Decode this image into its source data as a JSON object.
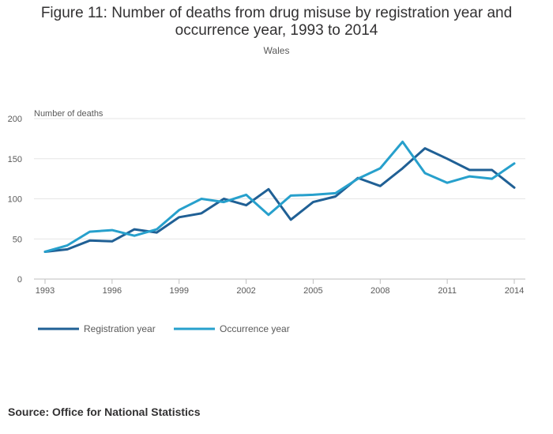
{
  "header": {
    "title": "Figure 11: Number of deaths from drug misuse by registration year and occurrence year, 1993 to 2014",
    "subtitle": "Wales"
  },
  "footer": {
    "source": "Source: Office for National Statistics"
  },
  "chart_data": {
    "type": "line",
    "title": "Figure 11: Number of deaths from drug misuse by registration year and occurrence year, 1993 to 2014",
    "subtitle": "Wales",
    "xlabel": "",
    "ylabel": "Number of deaths",
    "x": [
      1993,
      1994,
      1995,
      1996,
      1997,
      1998,
      1999,
      2000,
      2001,
      2002,
      2003,
      2004,
      2005,
      2006,
      2007,
      2008,
      2009,
      2010,
      2011,
      2012,
      2013,
      2014
    ],
    "x_ticks": [
      "1993",
      "1996",
      "1999",
      "2002",
      "2005",
      "2008",
      "2011",
      "2014"
    ],
    "y_ticks": [
      "0",
      "50",
      "100",
      "150",
      "200"
    ],
    "ylim": [
      0,
      200
    ],
    "grid": true,
    "legend_position": "bottom-left",
    "series": [
      {
        "name": "Registration year",
        "color": "#206095",
        "values": [
          34,
          37,
          48,
          47,
          62,
          58,
          77,
          82,
          100,
          92,
          112,
          74,
          96,
          103,
          126,
          116,
          138,
          163,
          150,
          136,
          136,
          114
        ]
      },
      {
        "name": "Occurrence year",
        "color": "#27a0cc",
        "values": [
          34,
          42,
          59,
          61,
          54,
          62,
          86,
          100,
          96,
          105,
          80,
          104,
          105,
          107,
          125,
          138,
          171,
          132,
          120,
          128,
          125,
          144
        ]
      }
    ]
  }
}
